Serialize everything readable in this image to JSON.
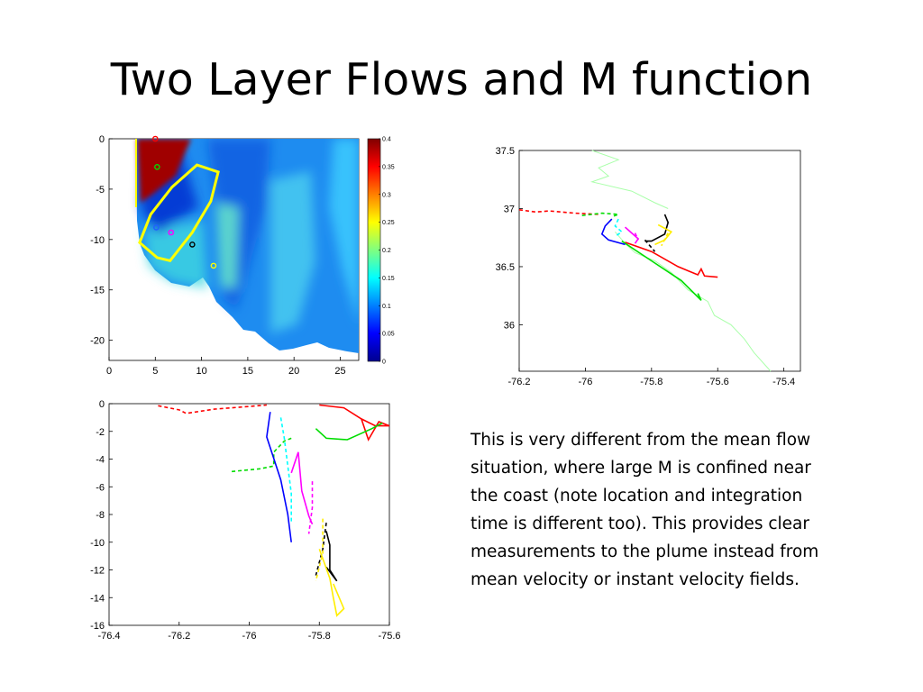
{
  "slide": {
    "title": "Two Layer Flows and M function",
    "body": "This is very different from the mean flow situation, where large M is confined near the coast (note location and integration time is different too). This provides clear measurements to the plume instead from mean velocity or instant velocity fields."
  },
  "chart_data": [
    {
      "type": "heatmap",
      "xlim": [
        0,
        27
      ],
      "ylim": [
        -22,
        0
      ],
      "xticks": [
        "0",
        "5",
        "10",
        "15",
        "20",
        "25"
      ],
      "yticks": [
        "0",
        "-5",
        "-10",
        "-15",
        "-20"
      ],
      "colorbar": {
        "range": [
          0,
          0.4
        ],
        "ticks": [
          "0",
          "0.05",
          "0.1",
          "0.15",
          "0.2",
          "0.25",
          "0.3",
          "0.35",
          "0.4"
        ],
        "colormap": "jet"
      },
      "markers": [
        {
          "x": 5,
          "y": 0,
          "color": "#ff0000"
        },
        {
          "x": 5.2,
          "y": -2.8,
          "color": "#00dd00"
        },
        {
          "x": 5.1,
          "y": -8.8,
          "color": "#2060ff"
        },
        {
          "x": 6.7,
          "y": -9.3,
          "color": "#ff00ff"
        },
        {
          "x": 9,
          "y": -10.5,
          "color": "#000000"
        },
        {
          "x": 11.3,
          "y": -12.6,
          "color": "#ffff00"
        }
      ],
      "contour": {
        "color": "#ffff00",
        "points": [
          [
            3.3,
            -10.3
          ],
          [
            4.5,
            -7.5
          ],
          [
            6.8,
            -4.8
          ],
          [
            9.5,
            -2.6
          ],
          [
            11.8,
            -3.3
          ],
          [
            11,
            -6.2
          ],
          [
            9,
            -9.3
          ],
          [
            6.6,
            -12.1
          ],
          [
            5.2,
            -11.8
          ]
        ]
      }
    },
    {
      "type": "line",
      "xlim": [
        -76.2,
        -75.35
      ],
      "ylim": [
        35.6,
        37.5
      ],
      "xticks": [
        "-76.2",
        "-76",
        "-75.8",
        "-75.6",
        "-75.4"
      ],
      "yticks": [
        "37.5",
        "37",
        "36.5",
        "36"
      ],
      "coastline": {
        "color": "#aaffaa",
        "upper": [
          [
            -75.98,
            37.5
          ],
          [
            -75.9,
            37.42
          ],
          [
            -75.96,
            37.35
          ],
          [
            -75.93,
            37.28
          ],
          [
            -75.98,
            37.23
          ],
          [
            -75.86,
            37.15
          ],
          [
            -75.79,
            37.05
          ],
          [
            -75.75,
            37.0
          ]
        ],
        "lower": [
          [
            -75.91,
            36.8
          ],
          [
            -75.88,
            36.7
          ],
          [
            -75.85,
            36.62
          ],
          [
            -75.79,
            36.55
          ],
          [
            -75.74,
            36.45
          ],
          [
            -75.69,
            36.3
          ],
          [
            -75.63,
            36.2
          ],
          [
            -75.61,
            36.08
          ],
          [
            -75.56,
            36.0
          ],
          [
            -75.52,
            35.88
          ],
          [
            -75.49,
            35.76
          ],
          [
            -75.44,
            35.6
          ]
        ]
      },
      "series": [
        {
          "color": "#ff0000",
          "dash": true,
          "points": [
            [
              -76.2,
              36.99
            ],
            [
              -76.15,
              36.97
            ],
            [
              -76.11,
              36.98
            ],
            [
              -76.03,
              36.96
            ],
            [
              -75.96,
              36.95
            ]
          ]
        },
        {
          "color": "#ff0000",
          "dash": false,
          "points": [
            [
              -75.88,
              36.71
            ],
            [
              -75.8,
              36.63
            ],
            [
              -75.72,
              36.5
            ],
            [
              -75.66,
              36.43
            ],
            [
              -75.65,
              36.48
            ],
            [
              -75.64,
              36.42
            ],
            [
              -75.6,
              36.41
            ]
          ]
        },
        {
          "color": "#00dd00",
          "dash": true,
          "points": [
            [
              -76.01,
              36.94
            ],
            [
              -75.95,
              36.96
            ],
            [
              -75.9,
              36.95
            ],
            [
              -75.92,
              36.93
            ]
          ]
        },
        {
          "color": "#00dd00",
          "dash": false,
          "points": [
            [
              -75.89,
              36.72
            ],
            [
              -75.8,
              36.55
            ],
            [
              -75.71,
              36.38
            ],
            [
              -75.65,
              36.21
            ],
            [
              -75.66,
              36.27
            ]
          ]
        },
        {
          "color": "#0000ff",
          "dash": false,
          "points": [
            [
              -75.92,
              36.91
            ],
            [
              -75.94,
              36.85
            ],
            [
              -75.95,
              36.78
            ],
            [
              -75.93,
              36.73
            ],
            [
              -75.88,
              36.69
            ]
          ]
        },
        {
          "color": "#00ffff",
          "dash": true,
          "points": [
            [
              -75.9,
              36.91
            ],
            [
              -75.91,
              36.85
            ],
            [
              -75.89,
              36.8
            ],
            [
              -75.91,
              36.76
            ]
          ]
        },
        {
          "color": "#ff00ff",
          "dash": false,
          "points": [
            [
              -75.88,
              36.84
            ],
            [
              -75.86,
              36.79
            ],
            [
              -75.84,
              36.74
            ],
            [
              -75.85,
              36.7
            ]
          ]
        },
        {
          "color": "#ff00ff",
          "dash": true,
          "points": [
            [
              -75.85,
              36.79
            ],
            [
              -75.84,
              36.73
            ]
          ]
        },
        {
          "color": "#000000",
          "dash": false,
          "points": [
            [
              -75.76,
              36.95
            ],
            [
              -75.75,
              36.88
            ],
            [
              -75.76,
              36.78
            ],
            [
              -75.8,
              36.72
            ],
            [
              -75.82,
              36.72
            ]
          ]
        },
        {
          "color": "#000000",
          "dash": true,
          "points": [
            [
              -75.82,
              36.73
            ],
            [
              -75.79,
              36.63
            ]
          ]
        },
        {
          "color": "#ffee00",
          "dash": false,
          "points": [
            [
              -75.78,
              36.86
            ],
            [
              -75.74,
              36.8
            ],
            [
              -75.76,
              36.73
            ],
            [
              -75.79,
              36.69
            ]
          ]
        },
        {
          "color": "#ffee00",
          "dash": true,
          "points": [
            [
              -75.75,
              36.79
            ],
            [
              -75.77,
              36.68
            ]
          ]
        }
      ]
    },
    {
      "type": "line",
      "xlim": [
        -76.4,
        -75.6
      ],
      "ylim": [
        -16,
        0
      ],
      "xticks": [
        "-76.4",
        "-76.2",
        "-76",
        "-75.8",
        "-75.6"
      ],
      "yticks": [
        "0",
        "-2",
        "-4",
        "-6",
        "-8",
        "-10",
        "-12",
        "-14",
        "-16"
      ],
      "series": [
        {
          "color": "#ff0000",
          "dash": true,
          "points": [
            [
              -76.26,
              -0.15
            ],
            [
              -76.2,
              -0.45
            ],
            [
              -76.18,
              -0.7
            ],
            [
              -76.1,
              -0.4
            ],
            [
              -76,
              -0.2
            ],
            [
              -75.95,
              -0.1
            ]
          ]
        },
        {
          "color": "#ff0000",
          "dash": false,
          "points": [
            [
              -75.8,
              -0.1
            ],
            [
              -75.73,
              -0.3
            ],
            [
              -75.68,
              -1.1
            ],
            [
              -75.64,
              -1.6
            ],
            [
              -75.6,
              -1.6
            ],
            [
              -75.63,
              -1.3
            ],
            [
              -75.66,
              -2.6
            ],
            [
              -75.68,
              -1.1
            ]
          ]
        },
        {
          "color": "#00dd00",
          "dash": false,
          "points": [
            [
              -75.81,
              -1.8
            ],
            [
              -75.78,
              -2.5
            ],
            [
              -75.72,
              -2.6
            ],
            [
              -75.65,
              -1.8
            ],
            [
              -75.62,
              -1.4
            ]
          ]
        },
        {
          "color": "#00dd00",
          "dash": true,
          "points": [
            [
              -76.05,
              -4.9
            ],
            [
              -75.97,
              -4.7
            ],
            [
              -75.93,
              -4.5
            ],
            [
              -75.93,
              -3.5
            ],
            [
              -75.9,
              -2.7
            ],
            [
              -75.88,
              -2.5
            ]
          ]
        },
        {
          "color": "#0000ff",
          "dash": false,
          "points": [
            [
              -75.94,
              -0.6
            ],
            [
              -75.95,
              -2.4
            ],
            [
              -75.91,
              -5.5
            ],
            [
              -75.89,
              -8
            ],
            [
              -75.88,
              -10
            ]
          ]
        },
        {
          "color": "#00ffff",
          "dash": true,
          "points": [
            [
              -75.91,
              -1.0
            ],
            [
              -75.9,
              -2.5
            ],
            [
              -75.89,
              -4.5
            ],
            [
              -75.88,
              -6.5
            ],
            [
              -75.88,
              -8.5
            ]
          ]
        },
        {
          "color": "#ff00ff",
          "dash": false,
          "points": [
            [
              -75.88,
              -5
            ],
            [
              -75.86,
              -3.5
            ],
            [
              -75.85,
              -6.3
            ],
            [
              -75.83,
              -8.1
            ],
            [
              -75.82,
              -8.7
            ]
          ]
        },
        {
          "color": "#ff00ff",
          "dash": true,
          "points": [
            [
              -75.82,
              -5.6
            ],
            [
              -75.82,
              -7.5
            ],
            [
              -75.83,
              -9.4
            ]
          ]
        },
        {
          "color": "#000000",
          "dash": false,
          "points": [
            [
              -75.78,
              -9.2
            ],
            [
              -75.77,
              -10.2
            ],
            [
              -75.77,
              -12.0
            ],
            [
              -75.75,
              -12.8
            ],
            [
              -75.78,
              -11.8
            ]
          ]
        },
        {
          "color": "#000000",
          "dash": true,
          "points": [
            [
              -75.78,
              -8.6
            ],
            [
              -75.79,
              -10.5
            ],
            [
              -75.81,
              -12.4
            ]
          ]
        },
        {
          "color": "#ffee00",
          "dash": false,
          "points": [
            [
              -75.8,
              -10.5
            ],
            [
              -75.77,
              -12.6
            ],
            [
              -75.76,
              -14.0
            ],
            [
              -75.75,
              -15.3
            ],
            [
              -75.73,
              -14.8
            ],
            [
              -75.76,
              -13.0
            ]
          ]
        },
        {
          "color": "#ffee00",
          "dash": true,
          "points": [
            [
              -75.79,
              -8.3
            ],
            [
              -75.79,
              -10.8
            ],
            [
              -75.81,
              -12.8
            ]
          ]
        }
      ]
    }
  ]
}
